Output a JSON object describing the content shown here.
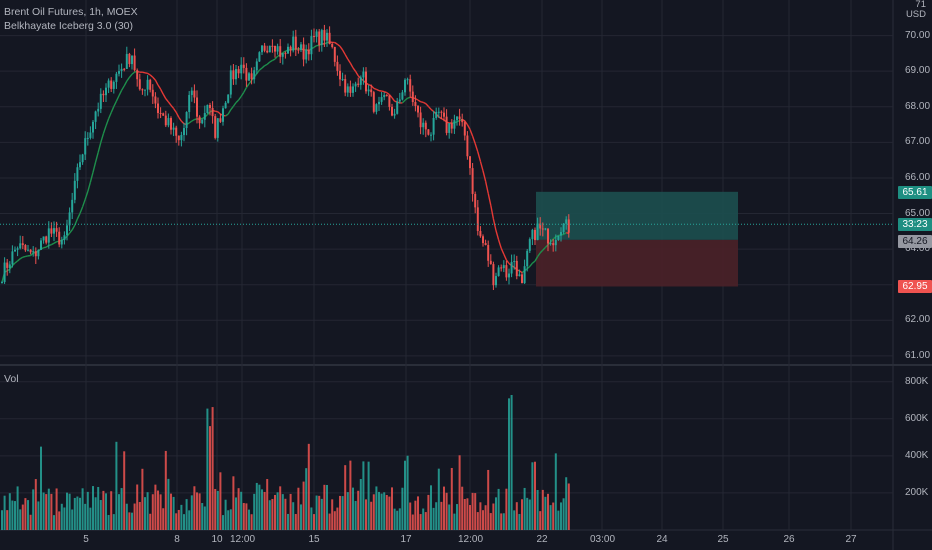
{
  "header": {
    "instrument": "Brent Oil Futures, 1h, MOEX",
    "indicator": "Belkhayate Iceberg 3.0 (30)",
    "volume_label": "Vol",
    "price_top": "71",
    "currency": "USD"
  },
  "price_axis": {
    "ticks": [
      "70.00",
      "69.00",
      "68.00",
      "67.00",
      "66.00",
      "65.00",
      "64.00",
      "63.00",
      "62.00",
      "61.00"
    ],
    "tick_values": [
      70,
      69,
      68,
      67,
      66,
      65,
      64,
      63,
      62,
      61
    ]
  },
  "volume_axis": {
    "ticks": [
      "800K",
      "600K",
      "400K",
      "200K"
    ],
    "tick_values": [
      800000,
      600000,
      400000,
      200000
    ]
  },
  "time_axis": {
    "labels": [
      "5",
      "8",
      "10",
      "12:00",
      "15",
      "17",
      "12:00",
      "22",
      "03:00",
      "24",
      "25",
      "26",
      "27"
    ]
  },
  "price_tags": {
    "target": "65.61",
    "countdown": "33:23",
    "last": "64.26",
    "stop": "62.95"
  },
  "position": {
    "entry": 64.26,
    "target": 65.61,
    "stop": 62.95
  },
  "colors": {
    "background": "#141722",
    "up": "#26a69a",
    "down": "#ef5350",
    "ma_up": "#1e8f4c",
    "ma_down": "#e53935",
    "profit_zone": "#1c4f4f",
    "loss_zone": "#4a2128",
    "grid": "#242733",
    "text": "#b2b5be"
  },
  "chart_data": {
    "type": "candlestick",
    "title": "Brent Oil Futures, 1h, MOEX",
    "ylim": [
      60.8,
      71
    ],
    "close_anchors": [
      [
        0,
        63.3
      ],
      [
        6,
        64.1
      ],
      [
        12,
        63.8
      ],
      [
        18,
        64.5
      ],
      [
        24,
        64.2
      ],
      [
        30,
        66.5
      ],
      [
        36,
        67.9
      ],
      [
        42,
        68.7
      ],
      [
        48,
        69.3
      ],
      [
        50,
        69.5
      ],
      [
        53,
        68.3
      ],
      [
        56,
        68.8
      ],
      [
        60,
        67.9
      ],
      [
        64,
        67.5
      ],
      [
        68,
        67.0
      ],
      [
        70,
        67.4
      ],
      [
        73,
        68.5
      ],
      [
        76,
        67.5
      ],
      [
        79,
        68.1
      ],
      [
        82,
        67.3
      ],
      [
        85,
        68.0
      ],
      [
        88,
        68.8
      ],
      [
        92,
        69.2
      ],
      [
        96,
        68.6
      ],
      [
        100,
        69.6
      ],
      [
        104,
        69.9
      ],
      [
        108,
        69.4
      ],
      [
        112,
        69.8
      ],
      [
        116,
        69.5
      ],
      [
        120,
        69.9
      ],
      [
        124,
        70.0
      ],
      [
        127,
        69.6
      ],
      [
        130,
        68.9
      ],
      [
        134,
        68.3
      ],
      [
        138,
        69.0
      ],
      [
        141,
        68.4
      ],
      [
        144,
        67.9
      ],
      [
        148,
        68.2
      ],
      [
        151,
        67.7
      ],
      [
        155,
        68.8
      ],
      [
        158,
        68.2
      ],
      [
        161,
        67.5
      ],
      [
        165,
        67.3
      ],
      [
        168,
        67.8
      ],
      [
        171,
        67.4
      ],
      [
        175,
        67.7
      ],
      [
        178,
        67.2
      ],
      [
        180,
        66.3
      ],
      [
        183,
        64.5
      ],
      [
        186,
        64.0
      ],
      [
        189,
        63.2
      ],
      [
        192,
        63.6
      ],
      [
        194,
        63.3
      ],
      [
        197,
        63.7
      ],
      [
        200,
        62.9
      ],
      [
        203,
        64.2
      ],
      [
        206,
        64.6
      ],
      [
        209,
        64.4
      ],
      [
        212,
        64.3
      ],
      [
        215,
        64.7
      ],
      [
        218,
        64.6
      ]
    ],
    "volume_peaks": [
      [
        0,
        180000
      ],
      [
        60,
        240000
      ],
      [
        80,
        700000
      ],
      [
        140,
        450000
      ],
      [
        180,
        780000
      ],
      [
        195,
        750000
      ],
      [
        205,
        420000
      ],
      [
        218,
        310000
      ]
    ]
  }
}
